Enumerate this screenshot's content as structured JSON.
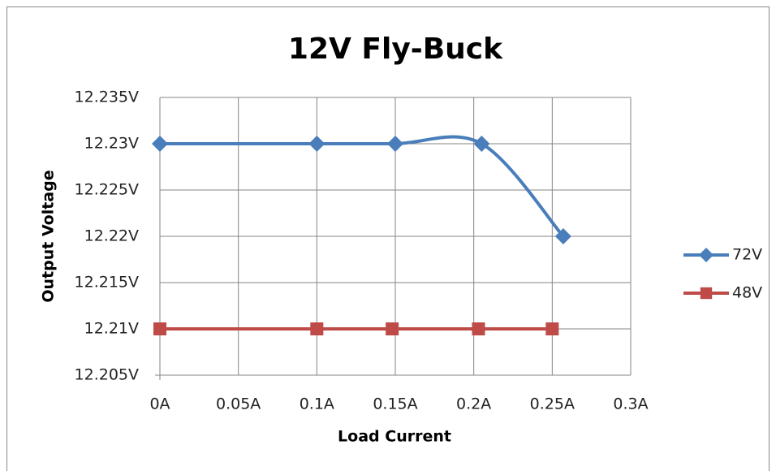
{
  "chart_data": {
    "type": "scatter-smooth",
    "title": "12V Fly-Buck",
    "xlabel": "Load Current",
    "ylabel": "Output Voltage",
    "xlim": [
      0,
      0.3
    ],
    "xticks": [
      {
        "value": 0,
        "label": "0A"
      },
      {
        "value": 0.05,
        "label": "0.05A"
      },
      {
        "value": 0.1,
        "label": "0.1A"
      },
      {
        "value": 0.15,
        "label": "0.15A"
      },
      {
        "value": 0.2,
        "label": "0.2A"
      },
      {
        "value": 0.25,
        "label": "0.25A"
      },
      {
        "value": 0.3,
        "label": "0.3A"
      }
    ],
    "ylim": [
      12.205,
      12.235
    ],
    "yticks": [
      {
        "value": 12.205,
        "label": "12.205V"
      },
      {
        "value": 12.21,
        "label": "12.21V"
      },
      {
        "value": 12.215,
        "label": "12.215V"
      },
      {
        "value": 12.22,
        "label": "12.22V"
      },
      {
        "value": 12.225,
        "label": "12.225V"
      },
      {
        "value": 12.23,
        "label": "12.23V"
      },
      {
        "value": 12.235,
        "label": "12.235V"
      }
    ],
    "grid": true,
    "legend": "right",
    "series": [
      {
        "name": "72V",
        "color": "#4a7ebb",
        "marker": "diamond",
        "x": [
          0,
          0.1,
          0.15,
          0.205,
          0.257
        ],
        "values": [
          12.23,
          12.23,
          12.23,
          12.23,
          12.22
        ]
      },
      {
        "name": "48V",
        "color": "#be4b48",
        "marker": "square",
        "x": [
          0,
          0.1,
          0.148,
          0.203,
          0.25
        ],
        "values": [
          12.21,
          12.21,
          12.21,
          12.21,
          12.21
        ]
      }
    ]
  }
}
